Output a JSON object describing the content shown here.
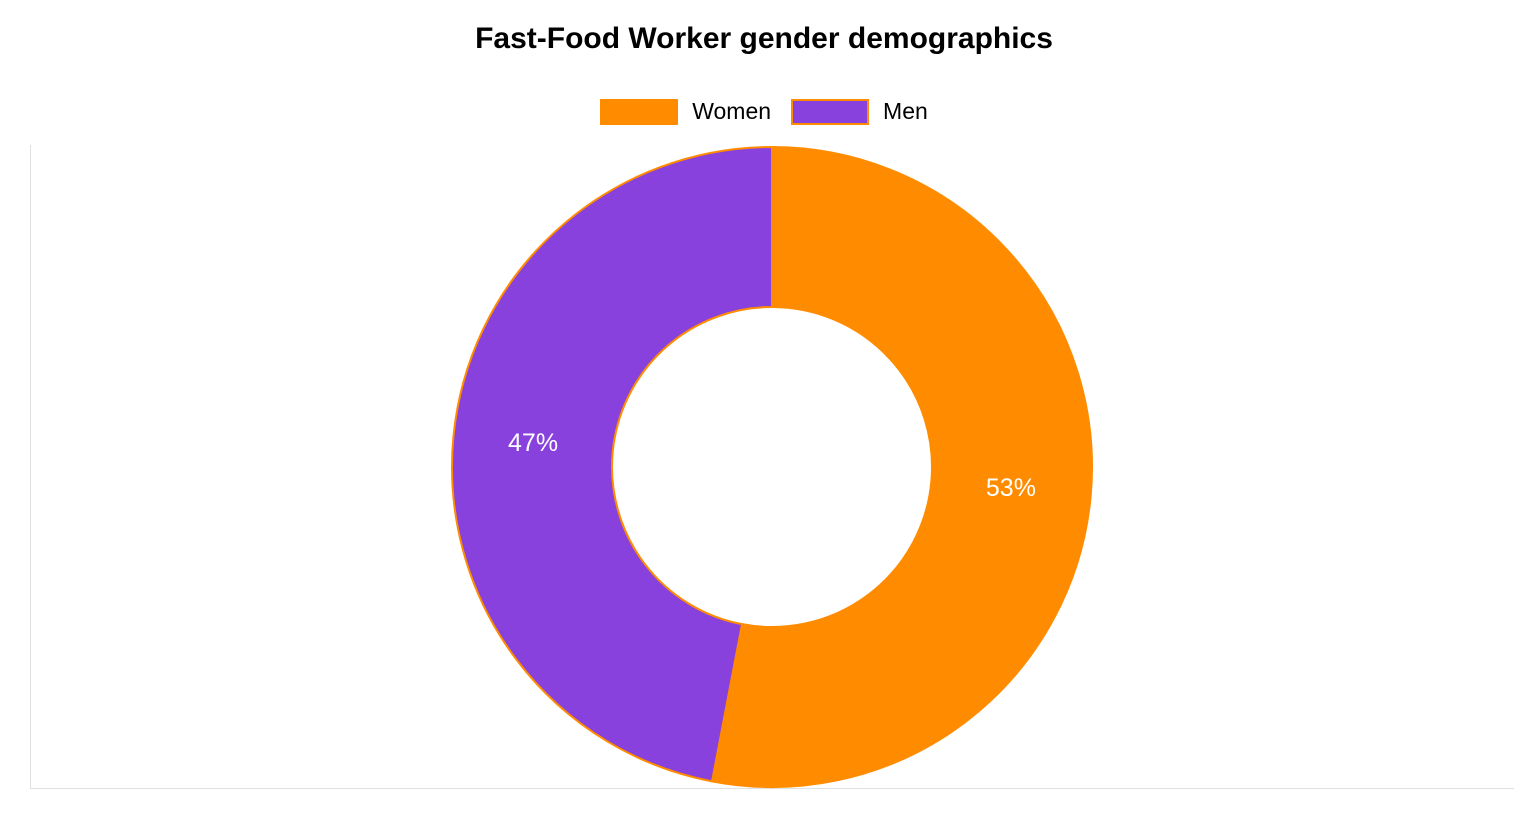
{
  "chart_data": {
    "type": "pie",
    "title": "Fast-Food Worker gender demographics",
    "categories": [
      "Women",
      "Men"
    ],
    "values": [
      53,
      47
    ],
    "value_labels": [
      "53%",
      "47%"
    ],
    "colors": [
      "#ff8c00",
      "#8841dd"
    ],
    "slice_border_color": "#ff8c00",
    "legend_position": "top-center",
    "donut": true
  }
}
